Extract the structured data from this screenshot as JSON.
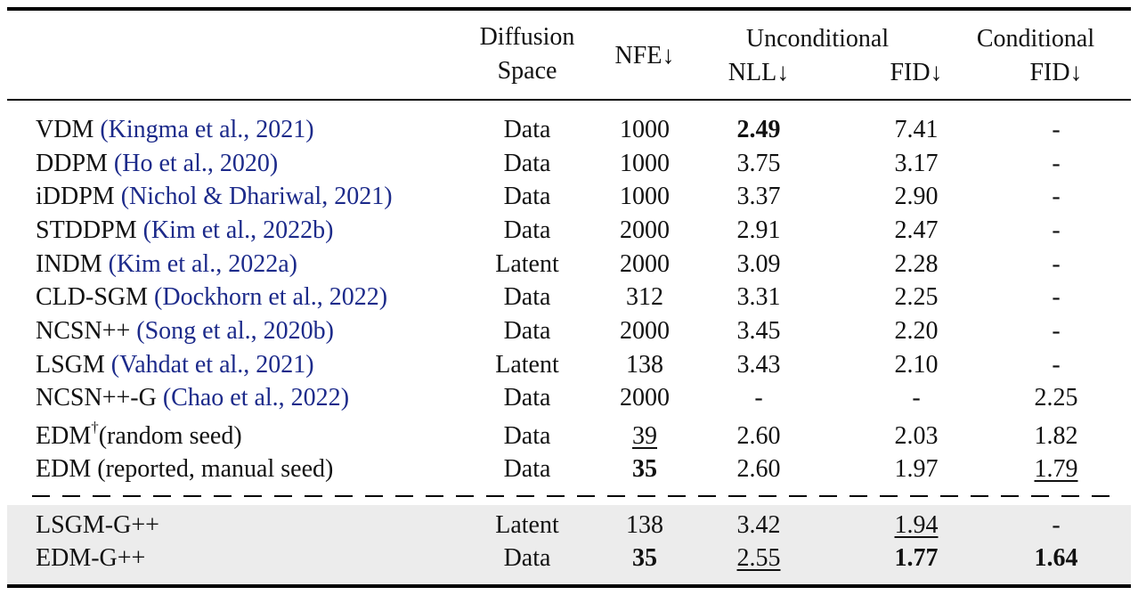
{
  "header": {
    "diffusion_line1": "Diffusion",
    "diffusion_line2": "Space",
    "nfe": "NFE↓",
    "unconditional": "Unconditional",
    "nll": "NLL↓",
    "fid_uncond": "FID↓",
    "conditional": "Conditional",
    "fid_cond": "FID↓"
  },
  "rows": [
    {
      "model": "VDM",
      "cite": "Kingma et al., 2021",
      "space": "Data",
      "nfe": "1000",
      "nll": "2.49",
      "fid": "7.41",
      "cfid": "-"
    },
    {
      "model": "DDPM",
      "cite": "Ho et al., 2020",
      "space": "Data",
      "nfe": "1000",
      "nll": "3.75",
      "fid": "3.17",
      "cfid": "-"
    },
    {
      "model": "iDDPM",
      "cite": "Nichol & Dhariwal, 2021",
      "space": "Data",
      "nfe": "1000",
      "nll": "3.37",
      "fid": "2.90",
      "cfid": "-"
    },
    {
      "model": "STDDPM",
      "cite": "Kim et al., 2022b",
      "space": "Data",
      "nfe": "2000",
      "nll": "2.91",
      "fid": "2.47",
      "cfid": "-"
    },
    {
      "model": "INDM",
      "cite": "Kim et al., 2022a",
      "space": "Latent",
      "nfe": "2000",
      "nll": "3.09",
      "fid": "2.28",
      "cfid": "-"
    },
    {
      "model": "CLD-SGM",
      "cite": "Dockhorn et al., 2022",
      "space": "Data",
      "nfe": "312",
      "nll": "3.31",
      "fid": "2.25",
      "cfid": "-"
    },
    {
      "model": "NCSN++",
      "cite": "Song et al., 2020b",
      "space": "Data",
      "nfe": "2000",
      "nll": "3.45",
      "fid": "2.20",
      "cfid": "-"
    },
    {
      "model": "LSGM",
      "cite": "Vahdat et al., 2021",
      "space": "Latent",
      "nfe": "138",
      "nll": "3.43",
      "fid": "2.10",
      "cfid": "-"
    },
    {
      "model": "NCSN++-G",
      "cite": "Chao et al., 2022",
      "space": "Data",
      "nfe": "2000",
      "nll": "-",
      "fid": "-",
      "cfid": "2.25"
    },
    {
      "model": "EDM",
      "model_dagger": "†",
      "model_suffix": "(random seed)",
      "space": "Data",
      "nfe": "39",
      "nll": "2.60",
      "fid": "2.03",
      "cfid": "1.82"
    },
    {
      "model": "EDM (reported, manual seed)",
      "space": "Data",
      "nfe": "35",
      "nll": "2.60",
      "fid": "1.97",
      "cfid": "1.79"
    },
    {
      "model": "LSGM-G++",
      "space": "Latent",
      "nfe": "138",
      "nll": "3.42",
      "fid": "1.94",
      "cfid": "-"
    },
    {
      "model": "EDM-G++",
      "space": "Data",
      "nfe": "35",
      "nll": "2.55",
      "fid": "1.77",
      "cfid": "1.64"
    }
  ]
}
